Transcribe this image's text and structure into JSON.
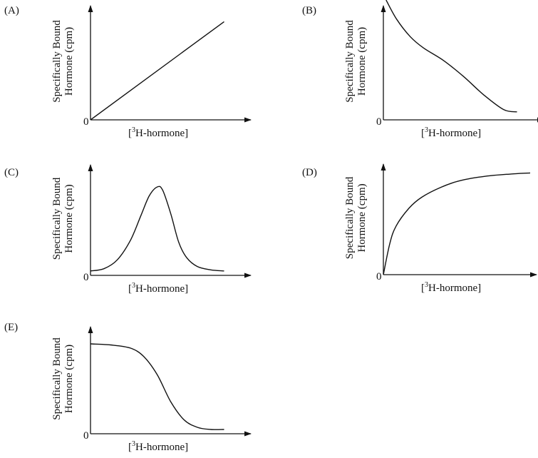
{
  "figure": {
    "y_label_line1": "Specifically Bound",
    "y_label_line2": "Hormone (cpm)",
    "x_label_pre": "[",
    "x_label_sup": "3",
    "x_label_post": "H-hormone]",
    "origin_label": "0"
  },
  "panels": [
    {
      "id": "A",
      "letter": "(A)"
    },
    {
      "id": "B",
      "letter": "(B)"
    },
    {
      "id": "C",
      "letter": "(C)"
    },
    {
      "id": "D",
      "letter": "(D)"
    },
    {
      "id": "E",
      "letter": "(E)"
    }
  ],
  "chart_data": [
    {
      "type": "line",
      "panel": "(A)",
      "xlabel": "[3H-hormone]",
      "ylabel": "Specifically Bound Hormone (cpm)",
      "x": [
        0,
        0.25,
        0.5,
        0.75,
        1.0
      ],
      "y": [
        0,
        0.22,
        0.44,
        0.66,
        0.86
      ],
      "xlim": [
        0,
        1.2
      ],
      "ylim": [
        0,
        1
      ],
      "grid": false
    },
    {
      "type": "line",
      "panel": "(B)",
      "xlabel": "[3H-hormone]",
      "ylabel": "Specifically Bound Hormone (cpm)",
      "x": [
        0.02,
        0.1,
        0.2,
        0.3,
        0.45,
        0.6,
        0.75,
        0.9,
        1.0
      ],
      "y": [
        1.05,
        0.88,
        0.73,
        0.63,
        0.52,
        0.38,
        0.22,
        0.09,
        0.07
      ],
      "xlim": [
        0,
        1.2
      ],
      "ylim": [
        0,
        1
      ],
      "grid": false
    },
    {
      "type": "line",
      "panel": "(C)",
      "xlabel": "[3H-hormone]",
      "ylabel": "Specifically Bound Hormone (cpm)",
      "x": [
        0,
        0.1,
        0.2,
        0.3,
        0.38,
        0.44,
        0.5,
        0.54,
        0.6,
        0.66,
        0.72,
        0.8,
        0.9,
        1.0
      ],
      "y": [
        0.04,
        0.06,
        0.14,
        0.32,
        0.55,
        0.72,
        0.8,
        0.77,
        0.56,
        0.3,
        0.16,
        0.08,
        0.05,
        0.04
      ],
      "xlim": [
        0,
        1.2
      ],
      "ylim": [
        0,
        1
      ],
      "grid": false
    },
    {
      "type": "line",
      "panel": "(D)",
      "xlabel": "[3H-hormone]",
      "ylabel": "Specifically Bound Hormone (cpm)",
      "x": [
        0,
        0.05,
        0.1,
        0.2,
        0.3,
        0.45,
        0.6,
        0.8,
        1.0,
        1.15
      ],
      "y": [
        0,
        0.28,
        0.44,
        0.6,
        0.7,
        0.79,
        0.85,
        0.89,
        0.91,
        0.92
      ],
      "xlim": [
        0,
        1.2
      ],
      "ylim": [
        0,
        1
      ],
      "grid": false
    },
    {
      "type": "line",
      "panel": "(E)",
      "xlabel": "[3H-hormone]",
      "ylabel": "Specifically Bound Hormone (cpm)",
      "x": [
        0,
        0.15,
        0.3,
        0.4,
        0.5,
        0.6,
        0.7,
        0.8,
        0.9,
        1.0
      ],
      "y": [
        0.84,
        0.83,
        0.8,
        0.72,
        0.55,
        0.3,
        0.13,
        0.06,
        0.04,
        0.04
      ],
      "xlim": [
        0,
        1.2
      ],
      "ylim": [
        0,
        1
      ],
      "grid": false
    }
  ]
}
